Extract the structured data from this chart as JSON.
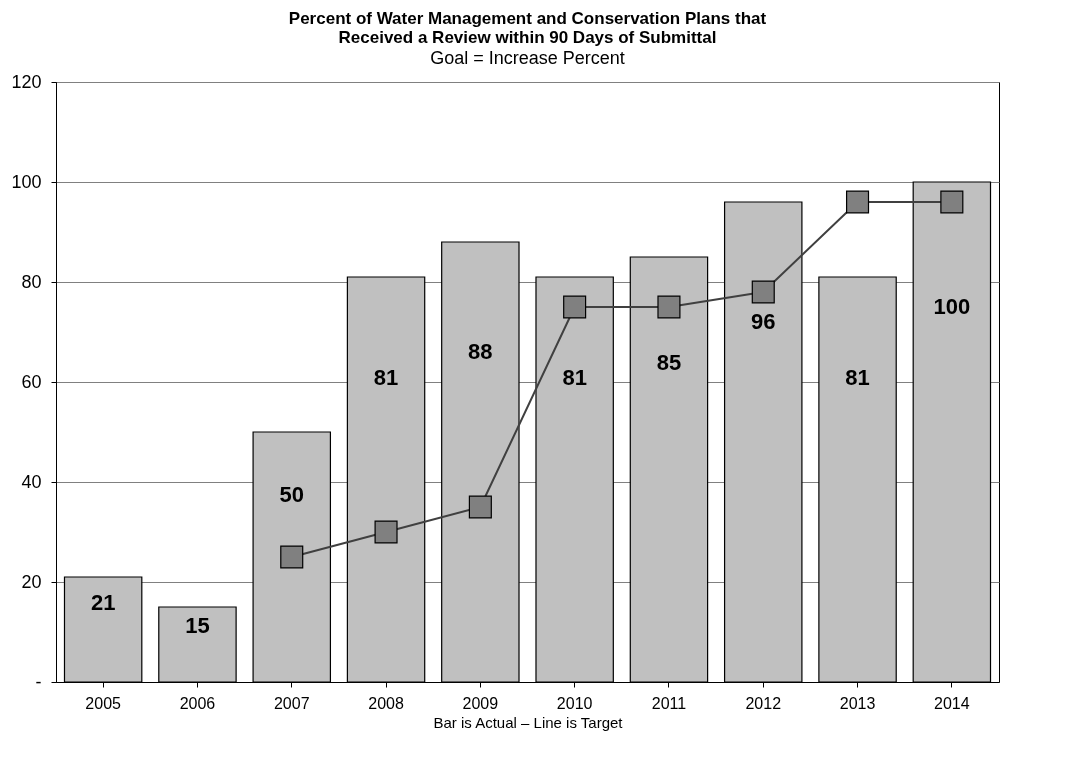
{
  "chart_data": {
    "type": "bar",
    "title": "Percent of Water Management and Conservation Plans that\nReceived a Review within 90 Days of Submittal",
    "subtitle": "Goal = Increase Percent",
    "xlabel": "Bar is Actual – Line is Target",
    "categories": [
      "2005",
      "2006",
      "2007",
      "2008",
      "2009",
      "2010",
      "2011",
      "2012",
      "2013",
      "2014"
    ],
    "series": [
      {
        "color": "#c0c0c0",
        "values": [
          21,
          15,
          50,
          81,
          88,
          81,
          85,
          96,
          81,
          100
        ],
        "value_labels": [
          "21",
          "15",
          "50",
          "81",
          "88",
          "81",
          "85",
          "96",
          "81",
          "100"
        ]
      },
      {
        "type": "line",
        "color": "#808080",
        "marker": "square",
        "values": [
          null,
          null,
          25,
          30,
          35,
          75,
          75,
          78,
          96,
          96
        ]
      }
    ],
    "ylim": [
      0,
      120
    ],
    "yticks": [
      {
        "value": 0,
        "label": "-"
      },
      20,
      40,
      60,
      80,
      100,
      120
    ],
    "grid": "y"
  }
}
